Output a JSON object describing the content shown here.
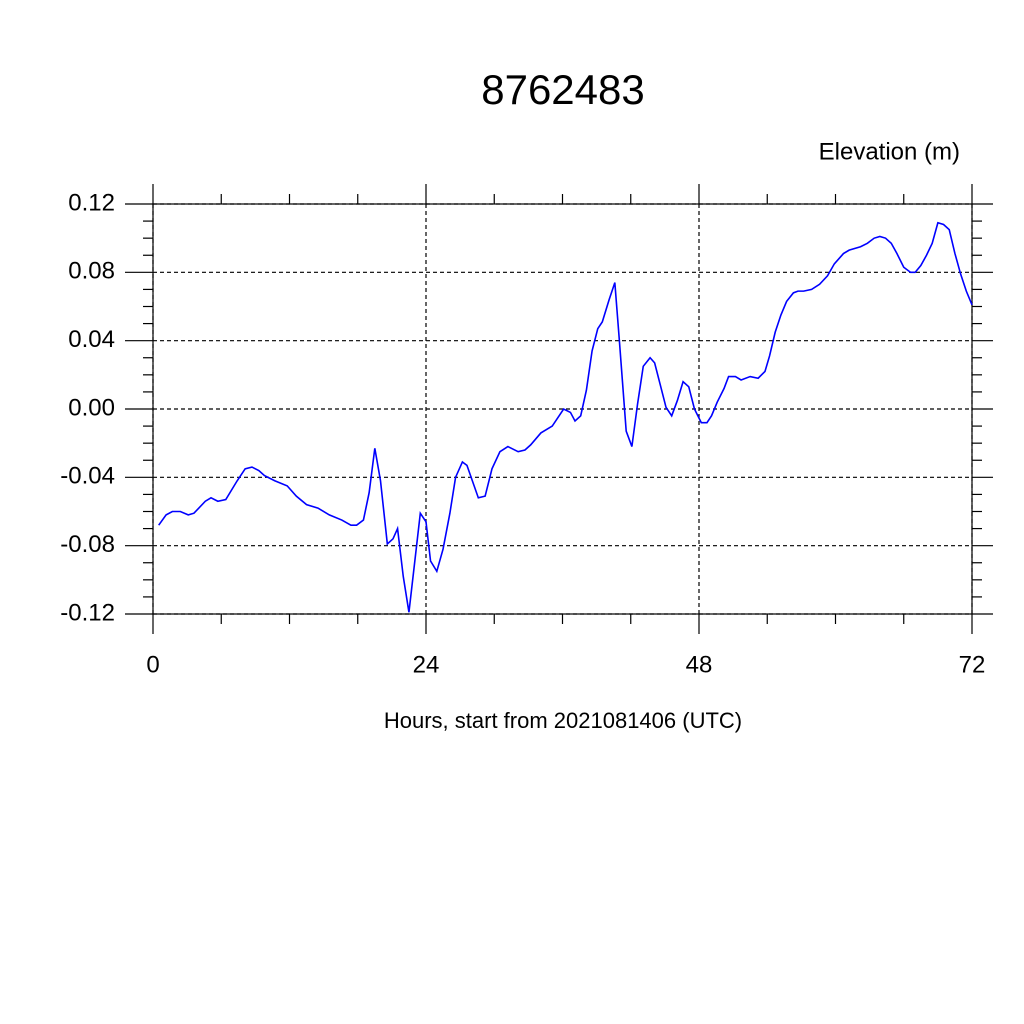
{
  "chart_data": {
    "type": "line",
    "title": "8762483",
    "y_label": "Elevation (m)",
    "x_label": "Hours, start from 2021081406 (UTC)",
    "xlim": [
      0,
      72
    ],
    "xticks": [
      0,
      24,
      48,
      72
    ],
    "ylim": [
      -0.12,
      0.12
    ],
    "yticks": [
      -0.12,
      -0.08,
      -0.04,
      {
        "value": 0,
        "label": "0.00"
      },
      0.04,
      0.08,
      0.12
    ],
    "grid": true,
    "x": [
      0.5,
      1.15,
      1.7,
      2.4,
      3.1,
      3.6,
      4.6,
      5.1,
      5.7,
      6.4,
      7.4,
      8.1,
      8.7,
      9.3,
      9.8,
      10.7,
      11.8,
      12.6,
      13.5,
      14.5,
      15.5,
      16.6,
      17.4,
      17.9,
      18.5,
      19,
      19.5,
      20,
      20.6,
      21.1,
      21.5,
      22,
      22.5,
      23,
      23.5,
      24,
      24.4,
      24.95,
      25.5,
      26.1,
      26.6,
      27.2,
      27.6,
      28.6,
      29.2,
      29.8,
      30.5,
      31.2,
      32.1,
      32.7,
      33.2,
      34.1,
      35.1,
      36.1,
      36.7,
      37.1,
      37.6,
      38.1,
      38.6,
      39.1,
      39.5,
      40.1,
      40.6,
      41,
      41.6,
      42.1,
      42.6,
      43.1,
      43.7,
      44.1,
      44.6,
      45.1,
      45.6,
      46.1,
      46.6,
      47.1,
      47.6,
      48.2,
      48.7,
      49.1,
      49.6,
      50.2,
      50.6,
      51.2,
      51.7,
      52.5,
      53.2,
      53.8,
      54.2,
      54.7,
      55.2,
      55.7,
      56.3,
      56.7,
      57.2,
      57.9,
      58.6,
      59.3,
      59.9,
      60.7,
      61.2,
      62.2,
      62.8,
      63.4,
      63.9,
      64.4,
      64.9,
      65.4,
      66,
      66.6,
      67,
      67.5,
      68,
      68.5,
      69,
      69.5,
      70,
      70.5,
      71,
      71.5,
      72
    ],
    "series": [
      {
        "name": "Elevation",
        "color": "#0000ff",
        "values": [
          -0.068,
          -0.062,
          -0.06,
          -0.06,
          -0.062,
          -0.061,
          -0.054,
          -0.052,
          -0.054,
          -0.053,
          -0.042,
          -0.035,
          -0.034,
          -0.036,
          -0.039,
          -0.042,
          -0.045,
          -0.051,
          -0.056,
          -0.058,
          -0.062,
          -0.065,
          -0.068,
          -0.068,
          -0.065,
          -0.049,
          -0.023,
          -0.042,
          -0.079,
          -0.076,
          -0.07,
          -0.098,
          -0.119,
          -0.09,
          -0.061,
          -0.066,
          -0.089,
          -0.095,
          -0.082,
          -0.061,
          -0.04,
          -0.031,
          -0.033,
          -0.052,
          -0.051,
          -0.035,
          -0.025,
          -0.022,
          -0.025,
          -0.024,
          -0.021,
          -0.014,
          -0.01,
          0,
          -0.002,
          -0.007,
          -0.004,
          0.011,
          0.034,
          0.047,
          0.051,
          0.064,
          0.074,
          0.04,
          -0.013,
          -0.022,
          0.003,
          0.025,
          0.03,
          0.027,
          0.014,
          0.001,
          -0.004,
          0.005,
          0.016,
          0.013,
          0,
          -0.008,
          -0.008,
          -0.004,
          0.004,
          0.012,
          0.019,
          0.019,
          0.017,
          0.019,
          0.018,
          0.022,
          0.031,
          0.045,
          0.055,
          0.063,
          0.068,
          0.069,
          0.069,
          0.07,
          0.073,
          0.078,
          0.085,
          0.091,
          0.093,
          0.095,
          0.097,
          0.1,
          0.101,
          0.1,
          0.097,
          0.091,
          0.083,
          0.08,
          0.08,
          0.084,
          0.09,
          0.097,
          0.109,
          0.108,
          0.105,
          0.091,
          0.079,
          0.069,
          0.061
        ]
      }
    ]
  }
}
